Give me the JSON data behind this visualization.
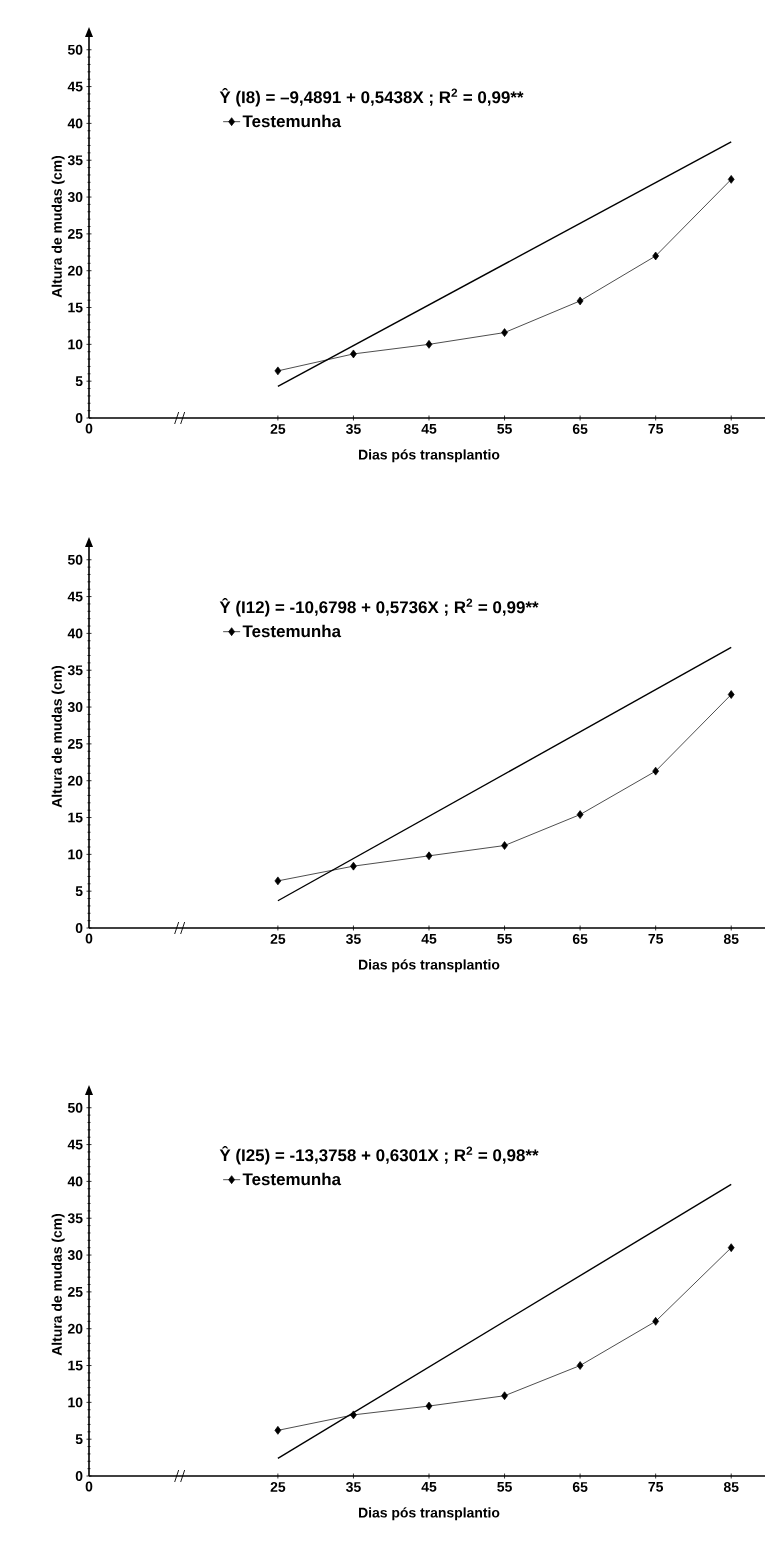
{
  "chart_data": [
    {
      "type": "line",
      "xlabel": "Dias pós transplantio",
      "ylabel": "Altura de mudas (cm)",
      "annotations": [
        "Ŷ (I8) = –9,4891 + 0,5438X ; R$^{2}$ = 0,99**"
      ],
      "legend": "top left",
      "xlim": [
        0,
        90
      ],
      "xticks": [
        0,
        25,
        35,
        45,
        55,
        65,
        75,
        85
      ],
      "ylim": [
        0,
        52
      ],
      "yticks": [
        0,
        5,
        10,
        15,
        20,
        25,
        30,
        35,
        40,
        45,
        50
      ],
      "series": [
        {
          "name": "Testemunha",
          "color": "#000000",
          "marker": "diamond",
          "x": [
            25,
            35,
            45,
            55,
            65,
            75,
            85
          ],
          "values": [
            6.4,
            8.7,
            10.0,
            11.6,
            15.9,
            22.0,
            32.4
          ]
        },
        {
          "color": "#000000",
          "marker": "none",
          "x": [
            25,
            85
          ],
          "values": [
            4.3,
            37.5
          ]
        }
      ]
    },
    {
      "type": "line",
      "xlabel": "Dias pós transplantio",
      "ylabel": "Altura de mudas (cm)",
      "annotations": [
        "Ŷ (I12) = -10,6798 + 0,5736X ; R$^{2}$ = 0,99**"
      ],
      "legend": "top left",
      "xlim": [
        0,
        90
      ],
      "xticks": [
        0,
        25,
        35,
        45,
        55,
        65,
        75,
        85
      ],
      "ylim": [
        0,
        52
      ],
      "yticks": [
        0,
        5,
        10,
        15,
        20,
        25,
        30,
        35,
        40,
        45,
        50
      ],
      "series": [
        {
          "name": "Testemunha",
          "color": "#000000",
          "marker": "diamond",
          "x": [
            25,
            35,
            45,
            55,
            65,
            75,
            85
          ],
          "values": [
            6.4,
            8.4,
            9.8,
            11.2,
            15.4,
            21.3,
            31.7
          ]
        },
        {
          "color": "#000000",
          "marker": "none",
          "x": [
            25,
            85
          ],
          "values": [
            3.7,
            38.1
          ]
        }
      ]
    },
    {
      "type": "line",
      "xlabel": "Dias pós transplantio",
      "ylabel": "Altura de mudas (cm)",
      "annotations": [
        "Ŷ (I25) = -13,3758 + 0,6301X ; R$^{2}$ = 0,98**"
      ],
      "legend": "top left",
      "xlim": [
        0,
        90
      ],
      "xticks": [
        0,
        25,
        35,
        45,
        55,
        65,
        75,
        85
      ],
      "ylim": [
        0,
        52
      ],
      "yticks": [
        0,
        5,
        10,
        15,
        20,
        25,
        30,
        35,
        40,
        45,
        50
      ],
      "series": [
        {
          "name": "Testemunha",
          "color": "#000000",
          "marker": "diamond",
          "x": [
            25,
            35,
            45,
            55,
            65,
            75,
            85
          ],
          "values": [
            6.2,
            8.3,
            9.5,
            10.9,
            15.0,
            21.0,
            31.0
          ]
        },
        {
          "color": "#000000",
          "marker": "none",
          "x": [
            25,
            85
          ],
          "values": [
            2.4,
            39.6
          ]
        }
      ]
    }
  ]
}
